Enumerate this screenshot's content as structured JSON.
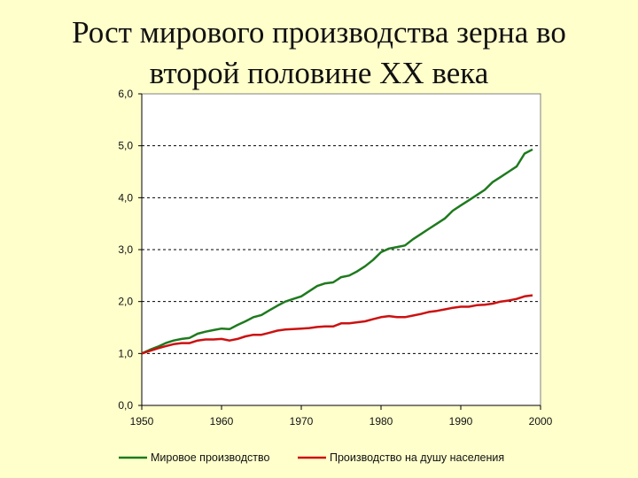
{
  "title_lines": [
    "Рост мирового производства зерна во",
    "второй половине XX века"
  ],
  "chart_data": {
    "type": "line",
    "title": "",
    "xlabel": "",
    "ylabel": "",
    "xlim": [
      1950,
      2000
    ],
    "ylim": [
      0,
      6
    ],
    "x_ticks": [
      1950,
      1960,
      1970,
      1980,
      1990,
      2000
    ],
    "y_ticks": [
      "0,0",
      "1,0",
      "2,0",
      "3,0",
      "4,0",
      "5,0",
      "6,0"
    ],
    "grid": "dashed-horizontal",
    "legend": "bottom",
    "x": [
      1950,
      1951,
      1952,
      1953,
      1954,
      1955,
      1956,
      1957,
      1958,
      1959,
      1960,
      1961,
      1962,
      1963,
      1964,
      1965,
      1966,
      1967,
      1968,
      1969,
      1970,
      1971,
      1972,
      1973,
      1974,
      1975,
      1976,
      1977,
      1978,
      1979,
      1980,
      1981,
      1982,
      1983,
      1984,
      1985,
      1986,
      1987,
      1988,
      1989,
      1990,
      1991,
      1992,
      1993,
      1994,
      1995,
      1996,
      1997,
      1998,
      1999
    ],
    "series": [
      {
        "name": "Мировое производство",
        "color": "#1e7a1e",
        "values": [
          1.0,
          1.07,
          1.13,
          1.2,
          1.25,
          1.28,
          1.3,
          1.38,
          1.42,
          1.45,
          1.48,
          1.47,
          1.55,
          1.62,
          1.7,
          1.74,
          1.83,
          1.92,
          2.0,
          2.05,
          2.1,
          2.2,
          2.3,
          2.35,
          2.37,
          2.47,
          2.5,
          2.58,
          2.68,
          2.8,
          2.95,
          3.02,
          3.05,
          3.08,
          3.2,
          3.3,
          3.4,
          3.5,
          3.6,
          3.75,
          3.85,
          3.95,
          4.05,
          4.15,
          4.3,
          4.4,
          4.5,
          4.6,
          4.85,
          4.93
        ]
      },
      {
        "name": "Производство на душу населения",
        "color": "#cc1111",
        "values": [
          1.0,
          1.05,
          1.1,
          1.14,
          1.18,
          1.2,
          1.2,
          1.25,
          1.27,
          1.27,
          1.28,
          1.25,
          1.28,
          1.33,
          1.36,
          1.36,
          1.4,
          1.44,
          1.46,
          1.47,
          1.48,
          1.49,
          1.51,
          1.52,
          1.52,
          1.58,
          1.58,
          1.6,
          1.62,
          1.66,
          1.7,
          1.72,
          1.7,
          1.7,
          1.73,
          1.76,
          1.8,
          1.82,
          1.85,
          1.88,
          1.9,
          1.9,
          1.93,
          1.94,
          1.96,
          2.0,
          2.02,
          2.05,
          2.1,
          2.12
        ]
      }
    ]
  }
}
